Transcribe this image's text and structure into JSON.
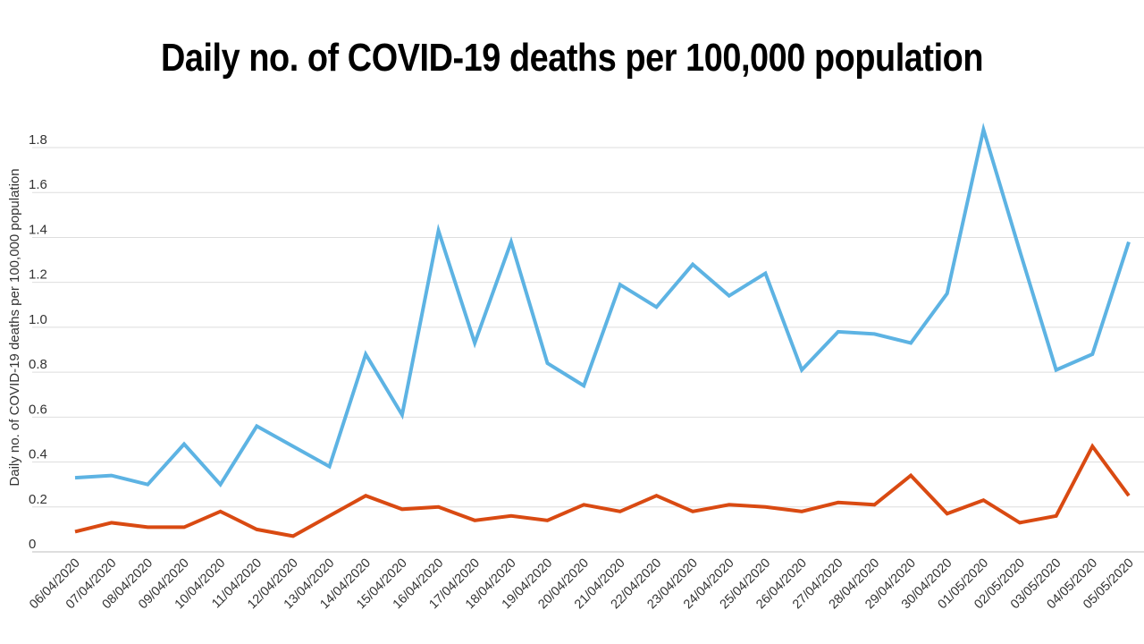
{
  "chart_data": {
    "type": "line",
    "title": "Daily no. of COVID-19 deaths per 100,000 population",
    "xlabel": "",
    "ylabel": "Daily no. of COVID-19 deaths per 100,000 population",
    "ylim": [
      0,
      1.9
    ],
    "yticks": [
      0,
      0.2,
      0.4,
      0.6,
      0.8,
      1.0,
      1.2,
      1.4,
      1.6,
      1.8
    ],
    "ytick_labels": [
      "0",
      "0.2",
      "0.4",
      "0.6",
      "0.8",
      "1.0",
      "1.2",
      "1.4",
      "1.6",
      "1.8"
    ],
    "grid": true,
    "categories": [
      "06/04/2020",
      "07/04/2020",
      "08/04/2020",
      "09/04/2020",
      "10/04/2020",
      "11/04/2020",
      "12/04/2020",
      "13/04/2020",
      "14/04/2020",
      "15/04/2020",
      "16/04/2020",
      "17/04/2020",
      "18/04/2020",
      "19/04/2020",
      "20/04/2020",
      "21/04/2020",
      "22/04/2020",
      "23/04/2020",
      "24/04/2020",
      "25/04/2020",
      "26/04/2020",
      "27/04/2020",
      "28/04/2020",
      "29/04/2020",
      "30/04/2020",
      "01/05/2020",
      "02/05/2020",
      "03/05/2020",
      "04/05/2020",
      "05/05/2020"
    ],
    "series": [
      {
        "color": "#5DB3E3",
        "values": [
          0.33,
          0.34,
          0.3,
          0.48,
          0.3,
          0.56,
          0.47,
          0.38,
          0.88,
          0.61,
          1.43,
          0.93,
          1.38,
          0.84,
          0.74,
          1.19,
          1.09,
          1.28,
          1.14,
          1.24,
          0.81,
          0.98,
          0.97,
          0.93,
          1.15,
          1.88,
          1.34,
          0.81,
          0.88,
          1.38
        ]
      },
      {
        "color": "#D94A12",
        "values": [
          0.09,
          0.13,
          0.11,
          0.11,
          0.18,
          0.1,
          0.07,
          0.16,
          0.25,
          0.19,
          0.2,
          0.14,
          0.16,
          0.14,
          0.21,
          0.18,
          0.25,
          0.18,
          0.21,
          0.2,
          0.18,
          0.22,
          0.21,
          0.34,
          0.17,
          0.23,
          0.13,
          0.16,
          0.47,
          0.25
        ]
      }
    ]
  }
}
